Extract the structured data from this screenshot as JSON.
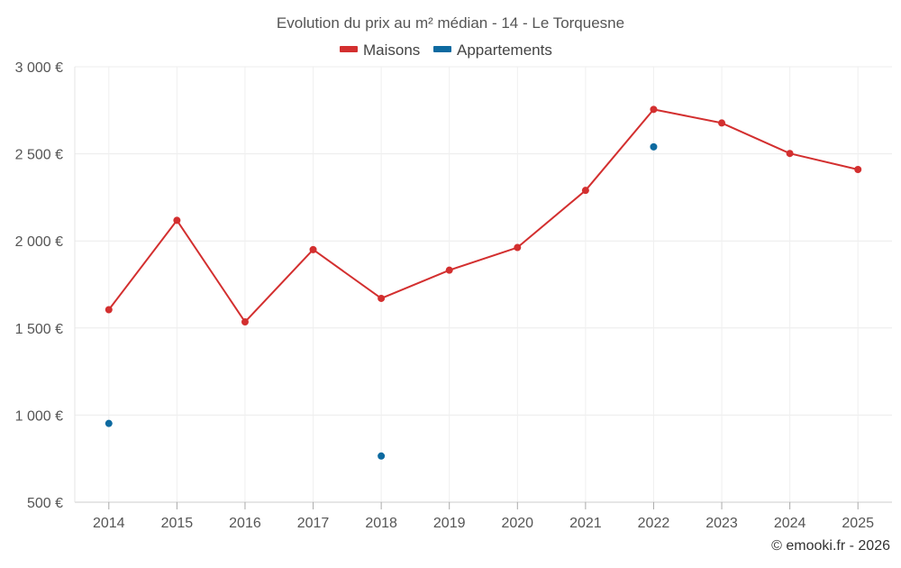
{
  "chart_data": {
    "type": "line",
    "title": "Evolution du prix au m² médian - 14 - Le Torquesne",
    "categories": [
      "2014",
      "2015",
      "2016",
      "2017",
      "2018",
      "2019",
      "2020",
      "2021",
      "2022",
      "2023",
      "2024",
      "2025"
    ],
    "series": [
      {
        "name": "Maisons",
        "color": "#d32f2f",
        "values": [
          1605,
          2118,
          1535,
          1950,
          1670,
          1832,
          1962,
          2290,
          2755,
          2677,
          2502,
          2410
        ],
        "connected": true
      },
      {
        "name": "Appartements",
        "color": "#0d6aa0",
        "values": [
          952,
          null,
          null,
          null,
          765,
          null,
          null,
          null,
          2540,
          null,
          null,
          null
        ],
        "connected": false
      }
    ],
    "y_ticks": [
      500,
      1000,
      1500,
      2000,
      2500,
      3000
    ],
    "y_tick_labels": [
      "500 €",
      "1 000 €",
      "1 500 €",
      "2 000 €",
      "2 500 €",
      "3 000 €"
    ],
    "ylim": [
      500,
      3000
    ],
    "xlabel": "",
    "ylabel": "",
    "legend_position": "top-center",
    "grid": true
  },
  "credit": "© emooki.fr - 2026"
}
